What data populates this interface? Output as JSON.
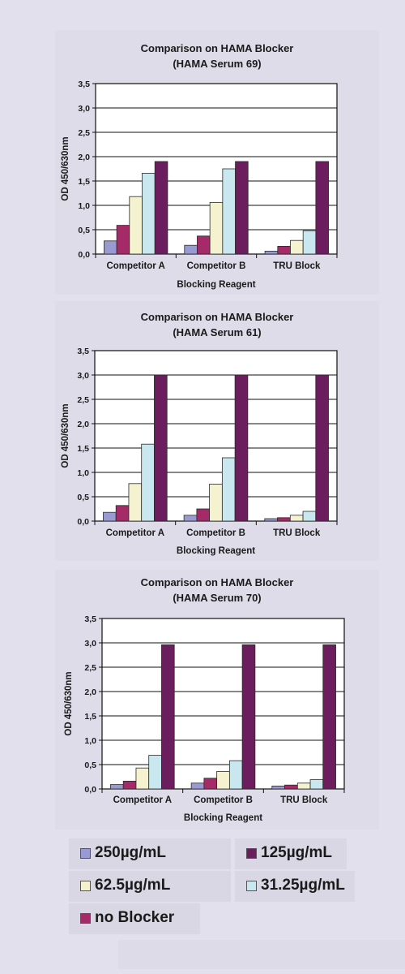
{
  "series_colors": {
    "250": "#9a9ad2",
    "no_blocker": "#a52a68",
    "62.5": "#f4f2cf",
    "31.25": "#c9e7ef",
    "125": "#6b1d5e"
  },
  "legend": [
    {
      "key": "250",
      "label": "250µg/mL"
    },
    {
      "key": "125",
      "label": "125µg/mL"
    },
    {
      "key": "62.5",
      "label": "62.5µg/mL"
    },
    {
      "key": "31.25",
      "label": "31.25µg/mL"
    },
    {
      "key": "no_blocker",
      "label": "no Blocker"
    }
  ],
  "chart_data": [
    {
      "type": "bar",
      "title": [
        "Comparison on HAMA Blocker",
        "(HAMA Serum 69)"
      ],
      "xlabel": "Blocking Reagent",
      "ylabel": "OD 450/630nm",
      "ylim": [
        0,
        3.5
      ],
      "yticks": [
        "0,0",
        "0,5",
        "1,0",
        "1,5",
        "2,0",
        "2,5",
        "3,0",
        "3,5"
      ],
      "grid": true,
      "categories": [
        "Competitor A",
        "Competitor B",
        "TRU Block"
      ],
      "series": [
        {
          "key": "250",
          "values": [
            0.27,
            0.18,
            0.06
          ]
        },
        {
          "key": "no_blocker",
          "values": [
            0.59,
            0.37,
            0.16
          ]
        },
        {
          "key": "62.5",
          "values": [
            1.18,
            1.06,
            0.28
          ]
        },
        {
          "key": "31.25",
          "values": [
            1.66,
            1.75,
            0.48
          ]
        },
        {
          "key": "125",
          "values": [
            1.9,
            1.9,
            1.9
          ]
        }
      ]
    },
    {
      "type": "bar",
      "title": [
        "Comparison on HAMA Blocker",
        "(HAMA Serum 61)"
      ],
      "xlabel": "Blocking Reagent",
      "ylabel": "OD 450/630nm",
      "ylim": [
        0,
        3.5
      ],
      "yticks": [
        "0,0",
        "0,5",
        "1,0",
        "1,5",
        "2,0",
        "2,5",
        "3,0",
        "3,5"
      ],
      "grid": true,
      "categories": [
        "Competitor A",
        "Competitor B",
        "TRU Block"
      ],
      "series": [
        {
          "key": "250",
          "values": [
            0.18,
            0.12,
            0.05
          ]
        },
        {
          "key": "no_blocker",
          "values": [
            0.32,
            0.25,
            0.07
          ]
        },
        {
          "key": "62.5",
          "values": [
            0.77,
            0.76,
            0.12
          ]
        },
        {
          "key": "31.25",
          "values": [
            1.58,
            1.3,
            0.2
          ]
        },
        {
          "key": "125",
          "values": [
            3.0,
            3.0,
            3.0
          ]
        }
      ]
    },
    {
      "type": "bar",
      "title": [
        "Comparison on HAMA Blocker",
        "(HAMA Serum 70)"
      ],
      "xlabel": "Blocking Reagent",
      "ylabel": "OD 450/630nm",
      "ylim": [
        0,
        3.5
      ],
      "yticks": [
        "0,0",
        "0,5",
        "1,0",
        "1,5",
        "2,0",
        "2,5",
        "3,0",
        "3,5"
      ],
      "grid": true,
      "categories": [
        "Competitor A",
        "Competitor B",
        "TRU Block"
      ],
      "series": [
        {
          "key": "250",
          "values": [
            0.09,
            0.12,
            0.06
          ]
        },
        {
          "key": "no_blocker",
          "values": [
            0.16,
            0.22,
            0.08
          ]
        },
        {
          "key": "62.5",
          "values": [
            0.43,
            0.36,
            0.12
          ]
        },
        {
          "key": "31.25",
          "values": [
            0.69,
            0.58,
            0.19
          ]
        },
        {
          "key": "125",
          "values": [
            2.96,
            2.96,
            2.96
          ]
        }
      ]
    }
  ]
}
